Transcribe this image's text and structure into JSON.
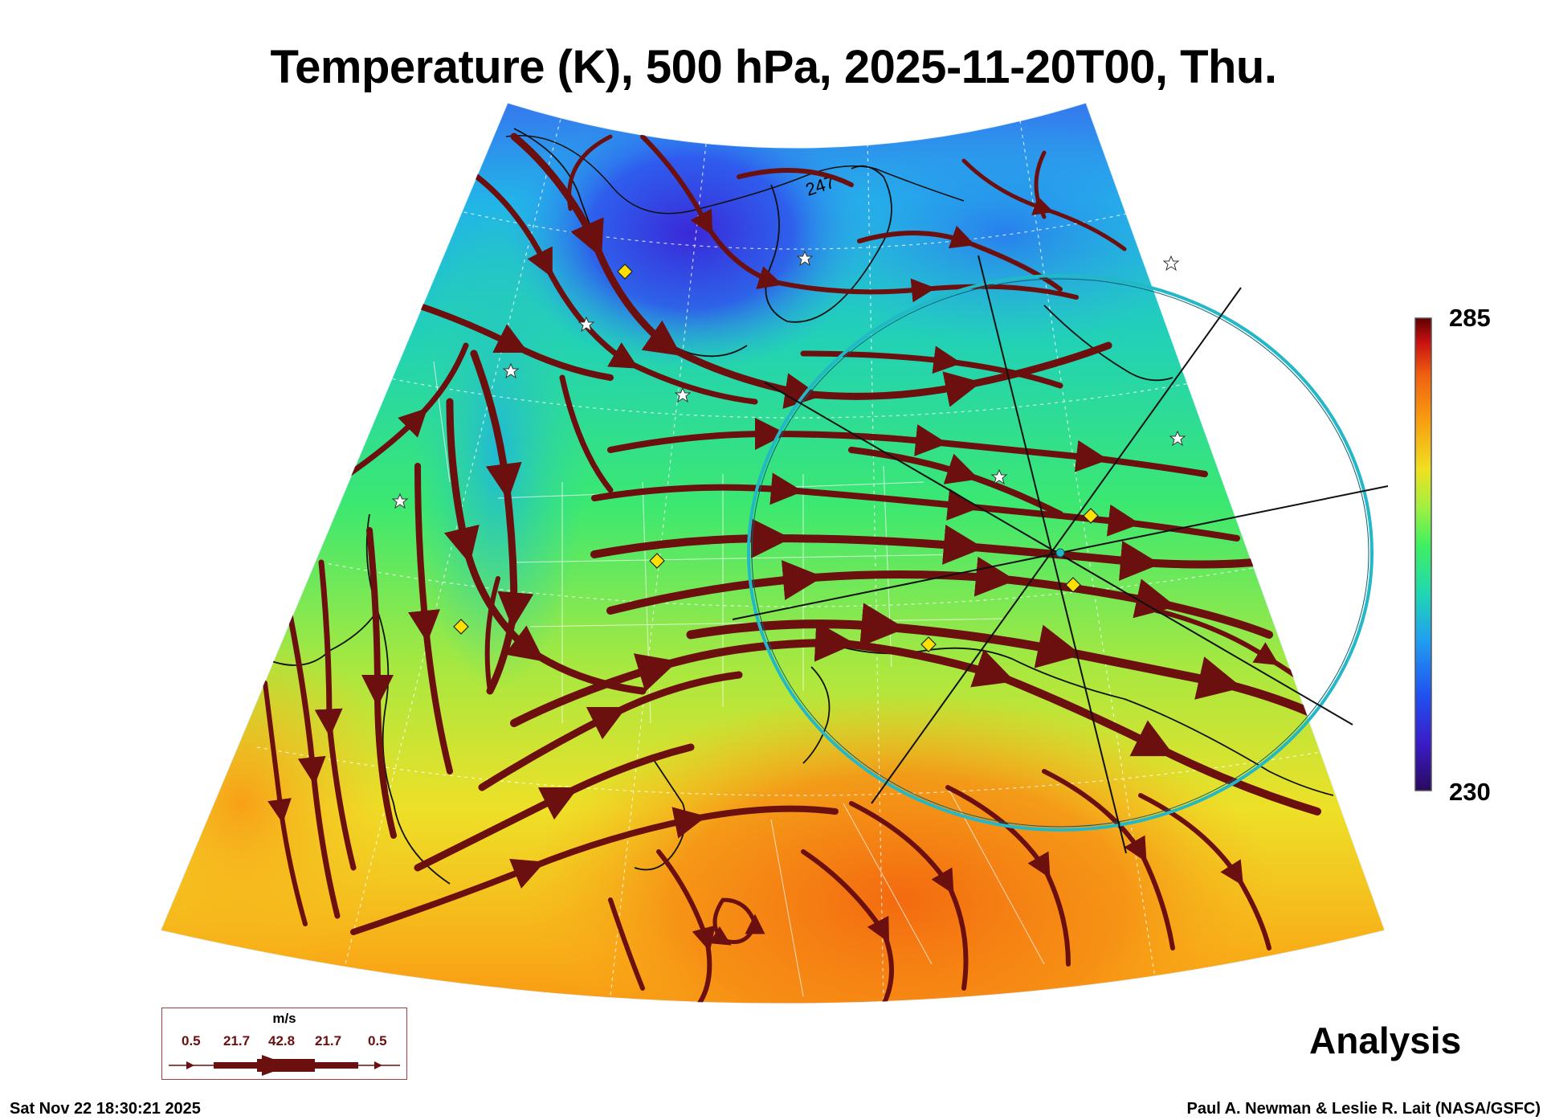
{
  "header": {
    "title": "Temperature (K), 500 hPa, 2025-11-20T00, Thu."
  },
  "colorbar": {
    "max_label": "285",
    "min_label": "230"
  },
  "contour_label": "247",
  "panel_label": "Analysis",
  "wind_legend": {
    "unit": "m/s",
    "speeds": [
      "0.5",
      "21.7",
      "42.8",
      "21.7",
      "0.5"
    ]
  },
  "footer": {
    "timestamp": "Sat Nov 22 18:30:21 2025",
    "credit": "Paul A. Newman & Leslie R. Lait (NASA/GSFC)"
  },
  "colors": {
    "streamline": "#6b0f0f",
    "range_ring": "#22b8c8",
    "station_marker": "#ffe000",
    "colormap": [
      "#2a0a5e",
      "#3a1cc8",
      "#2050f0",
      "#20a0f0",
      "#20d8b0",
      "#40f060",
      "#a0f040",
      "#f0e020",
      "#f8a010",
      "#f06010",
      "#c81010",
      "#600000"
    ]
  },
  "icons": {
    "site": "star-icon",
    "station": "diamond-icon"
  }
}
